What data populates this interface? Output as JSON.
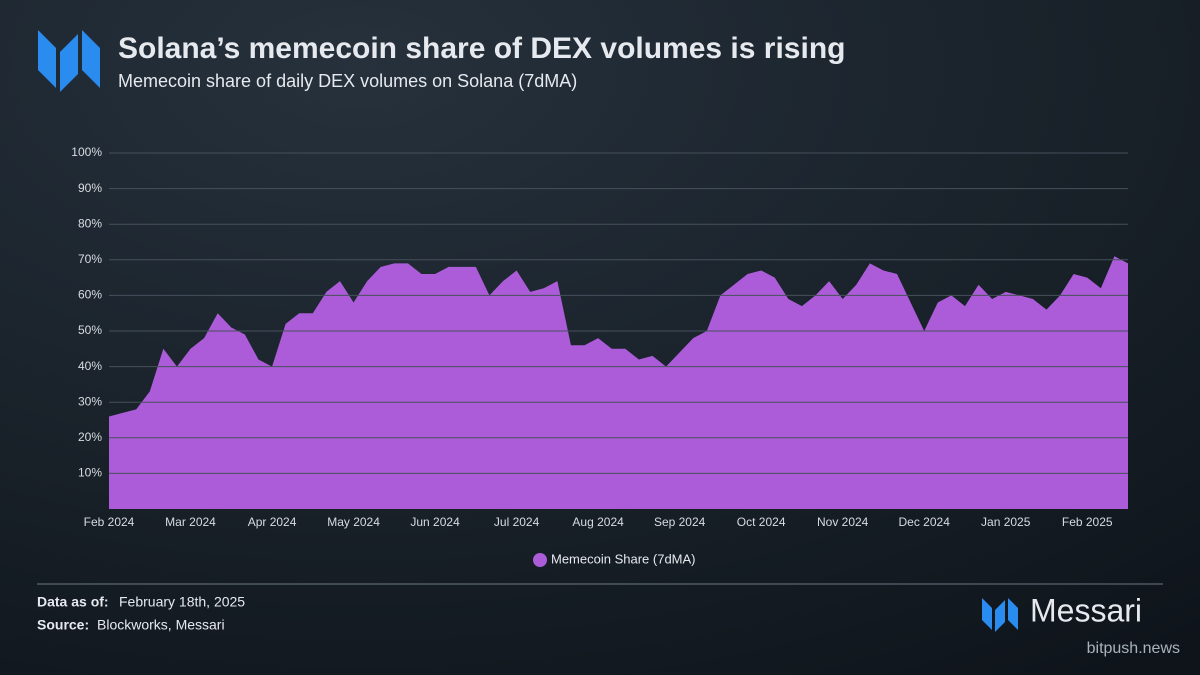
{
  "chart_data": {
    "type": "area",
    "title": "Solana’s memecoin share of DEX volumes is rising",
    "subtitle": "Memecoin share of daily DEX volumes on Solana (7dMA)",
    "categories": [
      "Feb 2024",
      null,
      null,
      null,
      null,
      null,
      "Mar 2024",
      null,
      null,
      null,
      null,
      null,
      "Apr 2024",
      null,
      null,
      null,
      null,
      null,
      "May 2024",
      null,
      null,
      null,
      null,
      null,
      "Jun 2024",
      null,
      null,
      null,
      null,
      null,
      "Jul 2024",
      null,
      null,
      null,
      null,
      null,
      "Aug 2024",
      null,
      null,
      null,
      null,
      null,
      "Sep 2024",
      null,
      null,
      null,
      null,
      null,
      "Oct 2024",
      null,
      null,
      null,
      null,
      null,
      "Nov 2024",
      null,
      null,
      null,
      null,
      null,
      "Dec 2024",
      null,
      null,
      null,
      null,
      null,
      "Jan 2025",
      null,
      null,
      null,
      null,
      null,
      "Feb 2025",
      null,
      null,
      null
    ],
    "series": [
      {
        "name": "Memecoin Share (7dMA)",
        "color": "#ac5cd8",
        "values": [
          26,
          27,
          28,
          33,
          45,
          40,
          45,
          48,
          55,
          51,
          49,
          42,
          40,
          52,
          55,
          55,
          61,
          64,
          58,
          64,
          68,
          69,
          69,
          66,
          66,
          68,
          68,
          68,
          60,
          64,
          67,
          61,
          62,
          64,
          46,
          46,
          48,
          45,
          45,
          42,
          43,
          40,
          44,
          48,
          50,
          60,
          63,
          66,
          67,
          65,
          59,
          57,
          60,
          64,
          59,
          63,
          69,
          67,
          66,
          58,
          50,
          58,
          60,
          57,
          63,
          59,
          61,
          60,
          59,
          56,
          60,
          66,
          65,
          62,
          71,
          69
        ]
      }
    ],
    "ylim": [
      0,
      100
    ],
    "yticks": [
      {
        "value": 10,
        "label": "10%"
      },
      {
        "value": 20,
        "label": "20%"
      },
      {
        "value": 30,
        "label": "30%"
      },
      {
        "value": 40,
        "label": "40%"
      },
      {
        "value": 50,
        "label": "50%"
      },
      {
        "value": 60,
        "label": "60%"
      },
      {
        "value": 70,
        "label": "70%"
      },
      {
        "value": 80,
        "label": "80%"
      },
      {
        "value": 90,
        "label": "90%"
      },
      {
        "value": 100,
        "label": "100%"
      }
    ],
    "grid": true,
    "legend": "bottom"
  },
  "footer": {
    "data_label": "Data as of:",
    "data_value": "February 18th, 2025",
    "source_label": "Source:",
    "source_value": "Blockworks, Messari",
    "brand": "Messari",
    "watermark": "bitpush.news"
  }
}
